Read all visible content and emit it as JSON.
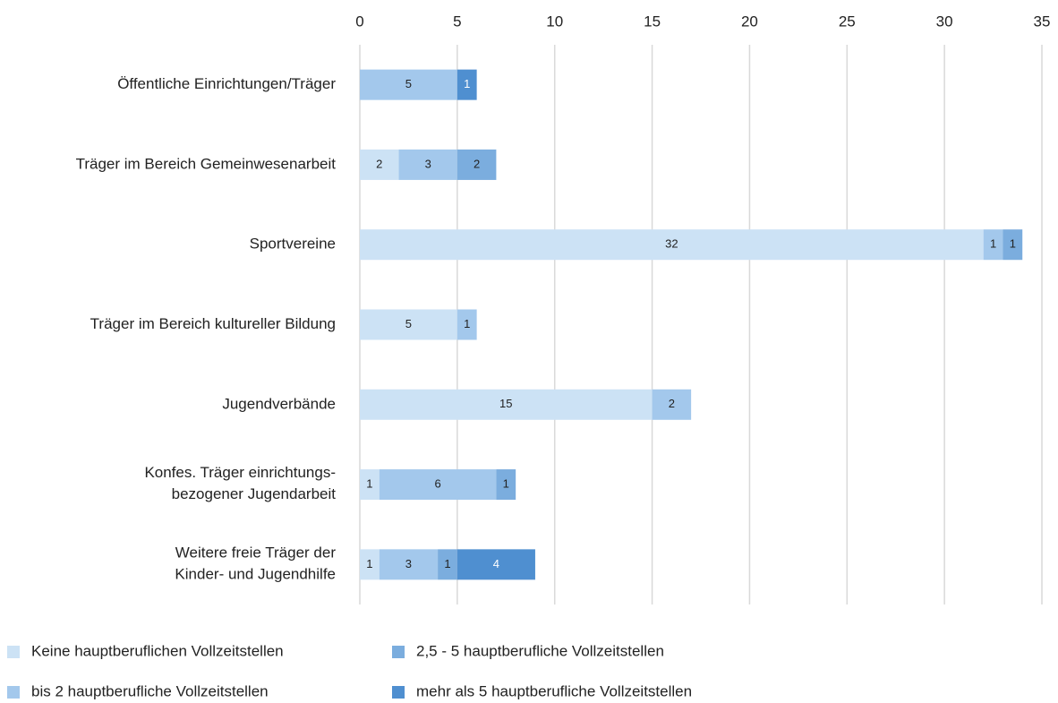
{
  "chart_data": {
    "type": "stacked-barh",
    "categories": [
      "Öffentliche Einrichtungen/Träger",
      "Träger im Bereich Gemeinwesenarbeit",
      "Sportvereine",
      "Träger im Bereich kultureller Bildung",
      "Jugendverbände",
      "Konfes. Träger einrichtungs-\nbezogener Jugendarbeit",
      "Weitere freie Träger der\nKinder- und Jugendhilfe"
    ],
    "series": [
      {
        "name": "Keine hauptberuflichen Vollzeitstellen",
        "color": "#cce2f5",
        "values": [
          null,
          2,
          32,
          5,
          15,
          1,
          1
        ]
      },
      {
        "name": "bis 2 hauptberufliche Vollzeitstellen",
        "color": "#a3c8ec",
        "values": [
          5,
          3,
          1,
          1,
          2,
          6,
          3
        ]
      },
      {
        "name": "2,5 - 5 hauptberufliche Vollzeitstellen",
        "color": "#7badde",
        "values": [
          null,
          2,
          1,
          null,
          null,
          1,
          1
        ]
      },
      {
        "name": "mehr als 5 hauptberufliche Vollzeitstellen",
        "color": "#4f8fd0",
        "values": [
          1,
          null,
          null,
          null,
          null,
          null,
          4
        ]
      }
    ],
    "xlim": [
      0,
      35
    ],
    "xticks": [
      0,
      5,
      10,
      15,
      20,
      25,
      30,
      35
    ],
    "grid": true,
    "legend": "bottom"
  }
}
